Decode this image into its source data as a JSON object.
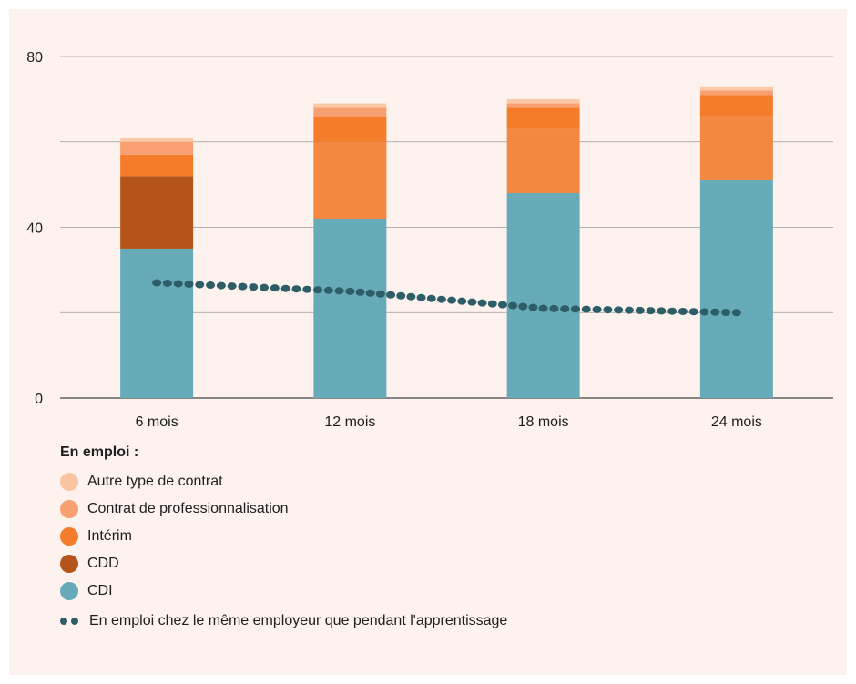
{
  "chart_data": {
    "type": "bar",
    "stacked": true,
    "categories": [
      "6 mois",
      "12 mois",
      "18 mois",
      "24 mois"
    ],
    "y_ticks": [
      "0",
      "40",
      "80"
    ],
    "ylim": [
      0,
      80
    ],
    "grid": true,
    "legend_placement": "bottom-left",
    "legend_title": "En emploi :",
    "series": [
      {
        "name": "CDI",
        "color": "#67abb8",
        "values": [
          35,
          42,
          48,
          51
        ]
      },
      {
        "name": "CDD",
        "color": "#b5541a",
        "values": [
          17,
          0,
          0,
          0
        ]
      },
      {
        "name": "Contrat de professionnalisation",
        "color": "#f28842",
        "values": [
          0,
          18,
          15,
          15
        ]
      },
      {
        "name": "Intérim",
        "color": "#f47c2a",
        "values": [
          5,
          6,
          5,
          5
        ]
      },
      {
        "name": "Autre type de contrat",
        "color": "#f8a071",
        "values": [
          3,
          2,
          1,
          1
        ]
      },
      {
        "name": "Autre type de contrat",
        "color": "#fbc9a6",
        "values": [
          1,
          1,
          1,
          1
        ]
      }
    ],
    "legend_entries": [
      {
        "name": "Autre type de contrat",
        "color": "#fbc4a1"
      },
      {
        "name": "Contrat de professionnalisation",
        "color": "#f8a071"
      },
      {
        "name": "Intérim",
        "color": "#f47c2a"
      },
      {
        "name": "CDD",
        "color": "#b5541a"
      },
      {
        "name": "CDI",
        "color": "#67abb8"
      }
    ],
    "line_series": {
      "name": "En emploi chez le même employeur que pendant l'apprentissage",
      "color": "#2d5d66",
      "values": [
        27,
        25,
        21,
        20
      ]
    }
  }
}
